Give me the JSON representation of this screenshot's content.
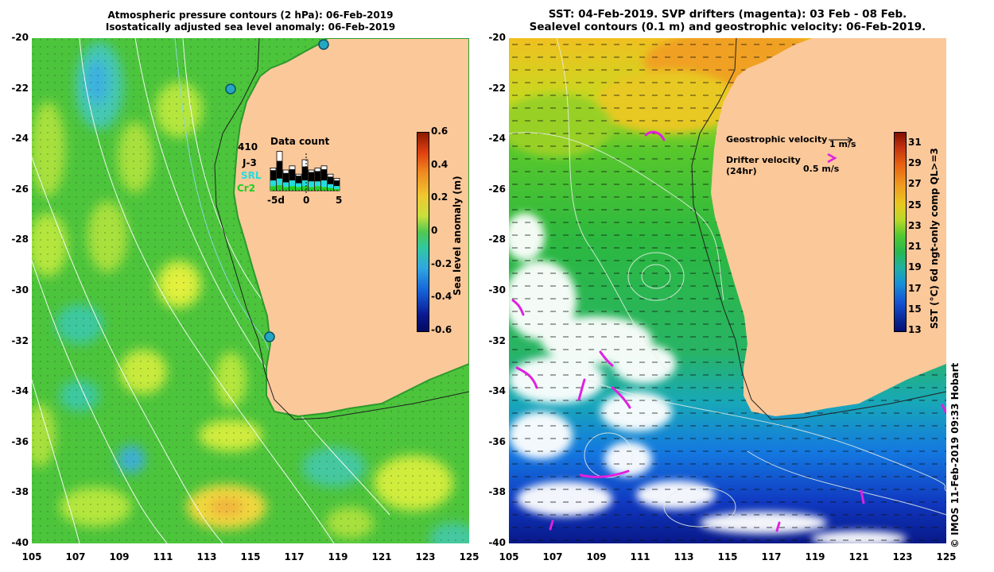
{
  "left_panel": {
    "title_line1": "Atmospheric pressure contours (2 hPa): 06-Feb-2019",
    "title_line2": "Isostatically adjusted sea level anomaly: 06-Feb-2019",
    "colorbar": {
      "title": "Sea level anomaly (m)",
      "ticks": [
        "0.6",
        "0.4",
        "0.2",
        "0",
        "-0.2",
        "-0.4",
        "-0.6"
      ]
    },
    "data_count": {
      "title": "Data count",
      "max_label": "410",
      "series": [
        "J-3",
        "SRL",
        "Cr2"
      ],
      "series_colors": [
        "#000000",
        "#22dddd",
        "#22cc22"
      ],
      "x_ticks": [
        "-5d",
        "0",
        "5"
      ]
    }
  },
  "right_panel": {
    "title_line1": "SST: 04-Feb-2019. SVP drifters (magenta): 03 Feb - 08 Feb.",
    "title_line2": "Sealevel contours (0.1 m) and geostrophic velocity: 06-Feb-2019.",
    "colorbar": {
      "title": "SST (°C) 6d ngt-only comp QL>=3",
      "ticks": [
        "31",
        "29",
        "27",
        "25",
        "23",
        "21",
        "19",
        "17",
        "15",
        "13"
      ]
    },
    "legend": {
      "geo_label": "Geostrophic velocity",
      "geo_scale": "1 m/s",
      "drifter_label": "Drifter velocity",
      "drifter_period": "(24hr)",
      "drifter_scale": "0.5 m/s"
    }
  },
  "axes": {
    "y_ticks": [
      "-20",
      "-22",
      "-24",
      "-26",
      "-28",
      "-30",
      "-32",
      "-34",
      "-36",
      "-38",
      "-40"
    ],
    "x_ticks": [
      "105",
      "107",
      "109",
      "111",
      "113",
      "115",
      "117",
      "119",
      "121",
      "123",
      "125"
    ]
  },
  "credit": "© IMOS 11-Feb-2019 09:33 Hobart",
  "colors": {
    "land": "#fbc89a",
    "sla_base": "#3cc83c",
    "drifter": "#e020e0"
  }
}
